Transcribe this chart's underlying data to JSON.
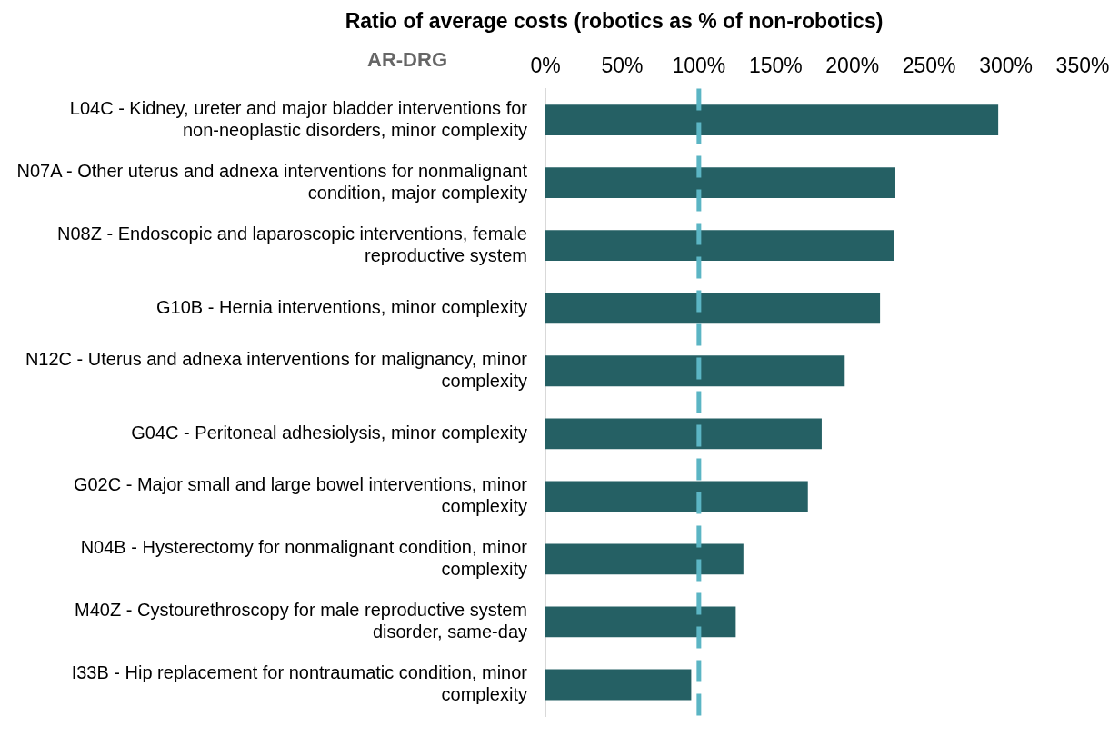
{
  "chart_data": {
    "type": "bar",
    "orientation": "horizontal",
    "title": "Ratio of average costs (robotics as % of non-robotics)",
    "ylabel": "AR-DRG",
    "categories": [
      "L04C - Kidney, ureter and major bladder interventions for non-neoplastic disorders, minor complexity",
      "N07A - Other uterus and adnexa interventions for nonmalignant condition, major complexity",
      "N08Z - Endoscopic and laparoscopic interventions, female reproductive system",
      "G10B - Hernia interventions, minor complexity",
      "N12C - Uterus and adnexa interventions for malignancy, minor complexity",
      "G04C - Peritoneal adhesiolysis, minor complexity",
      "G02C - Major small and large bowel interventions, minor complexity",
      "N04B - Hysterectomy for nonmalignant condition, minor complexity",
      "M40Z - Cystourethroscopy for male reproductive system disorder, same-day",
      "I33B - Hip replacement for nontraumatic condition, minor complexity"
    ],
    "values": [
      295,
      228,
      227,
      218,
      195,
      180,
      171,
      129,
      124,
      95
    ],
    "color": "#256064",
    "xlim": [
      0,
      350
    ],
    "xticks": [
      {
        "value": 0,
        "label": "0%"
      },
      {
        "value": 50,
        "label": "50%"
      },
      {
        "value": 100,
        "label": "100%"
      },
      {
        "value": 150,
        "label": "150%"
      },
      {
        "value": 200,
        "label": "200%"
      },
      {
        "value": 250,
        "label": "250%"
      },
      {
        "value": 300,
        "label": "300%"
      },
      {
        "value": 350,
        "label": "350%"
      }
    ],
    "ref_lines": [
      {
        "axis": "x",
        "value": 100,
        "color": "#5bb5c4",
        "line_style": "dashed"
      }
    ],
    "grid": false,
    "legend": false
  }
}
